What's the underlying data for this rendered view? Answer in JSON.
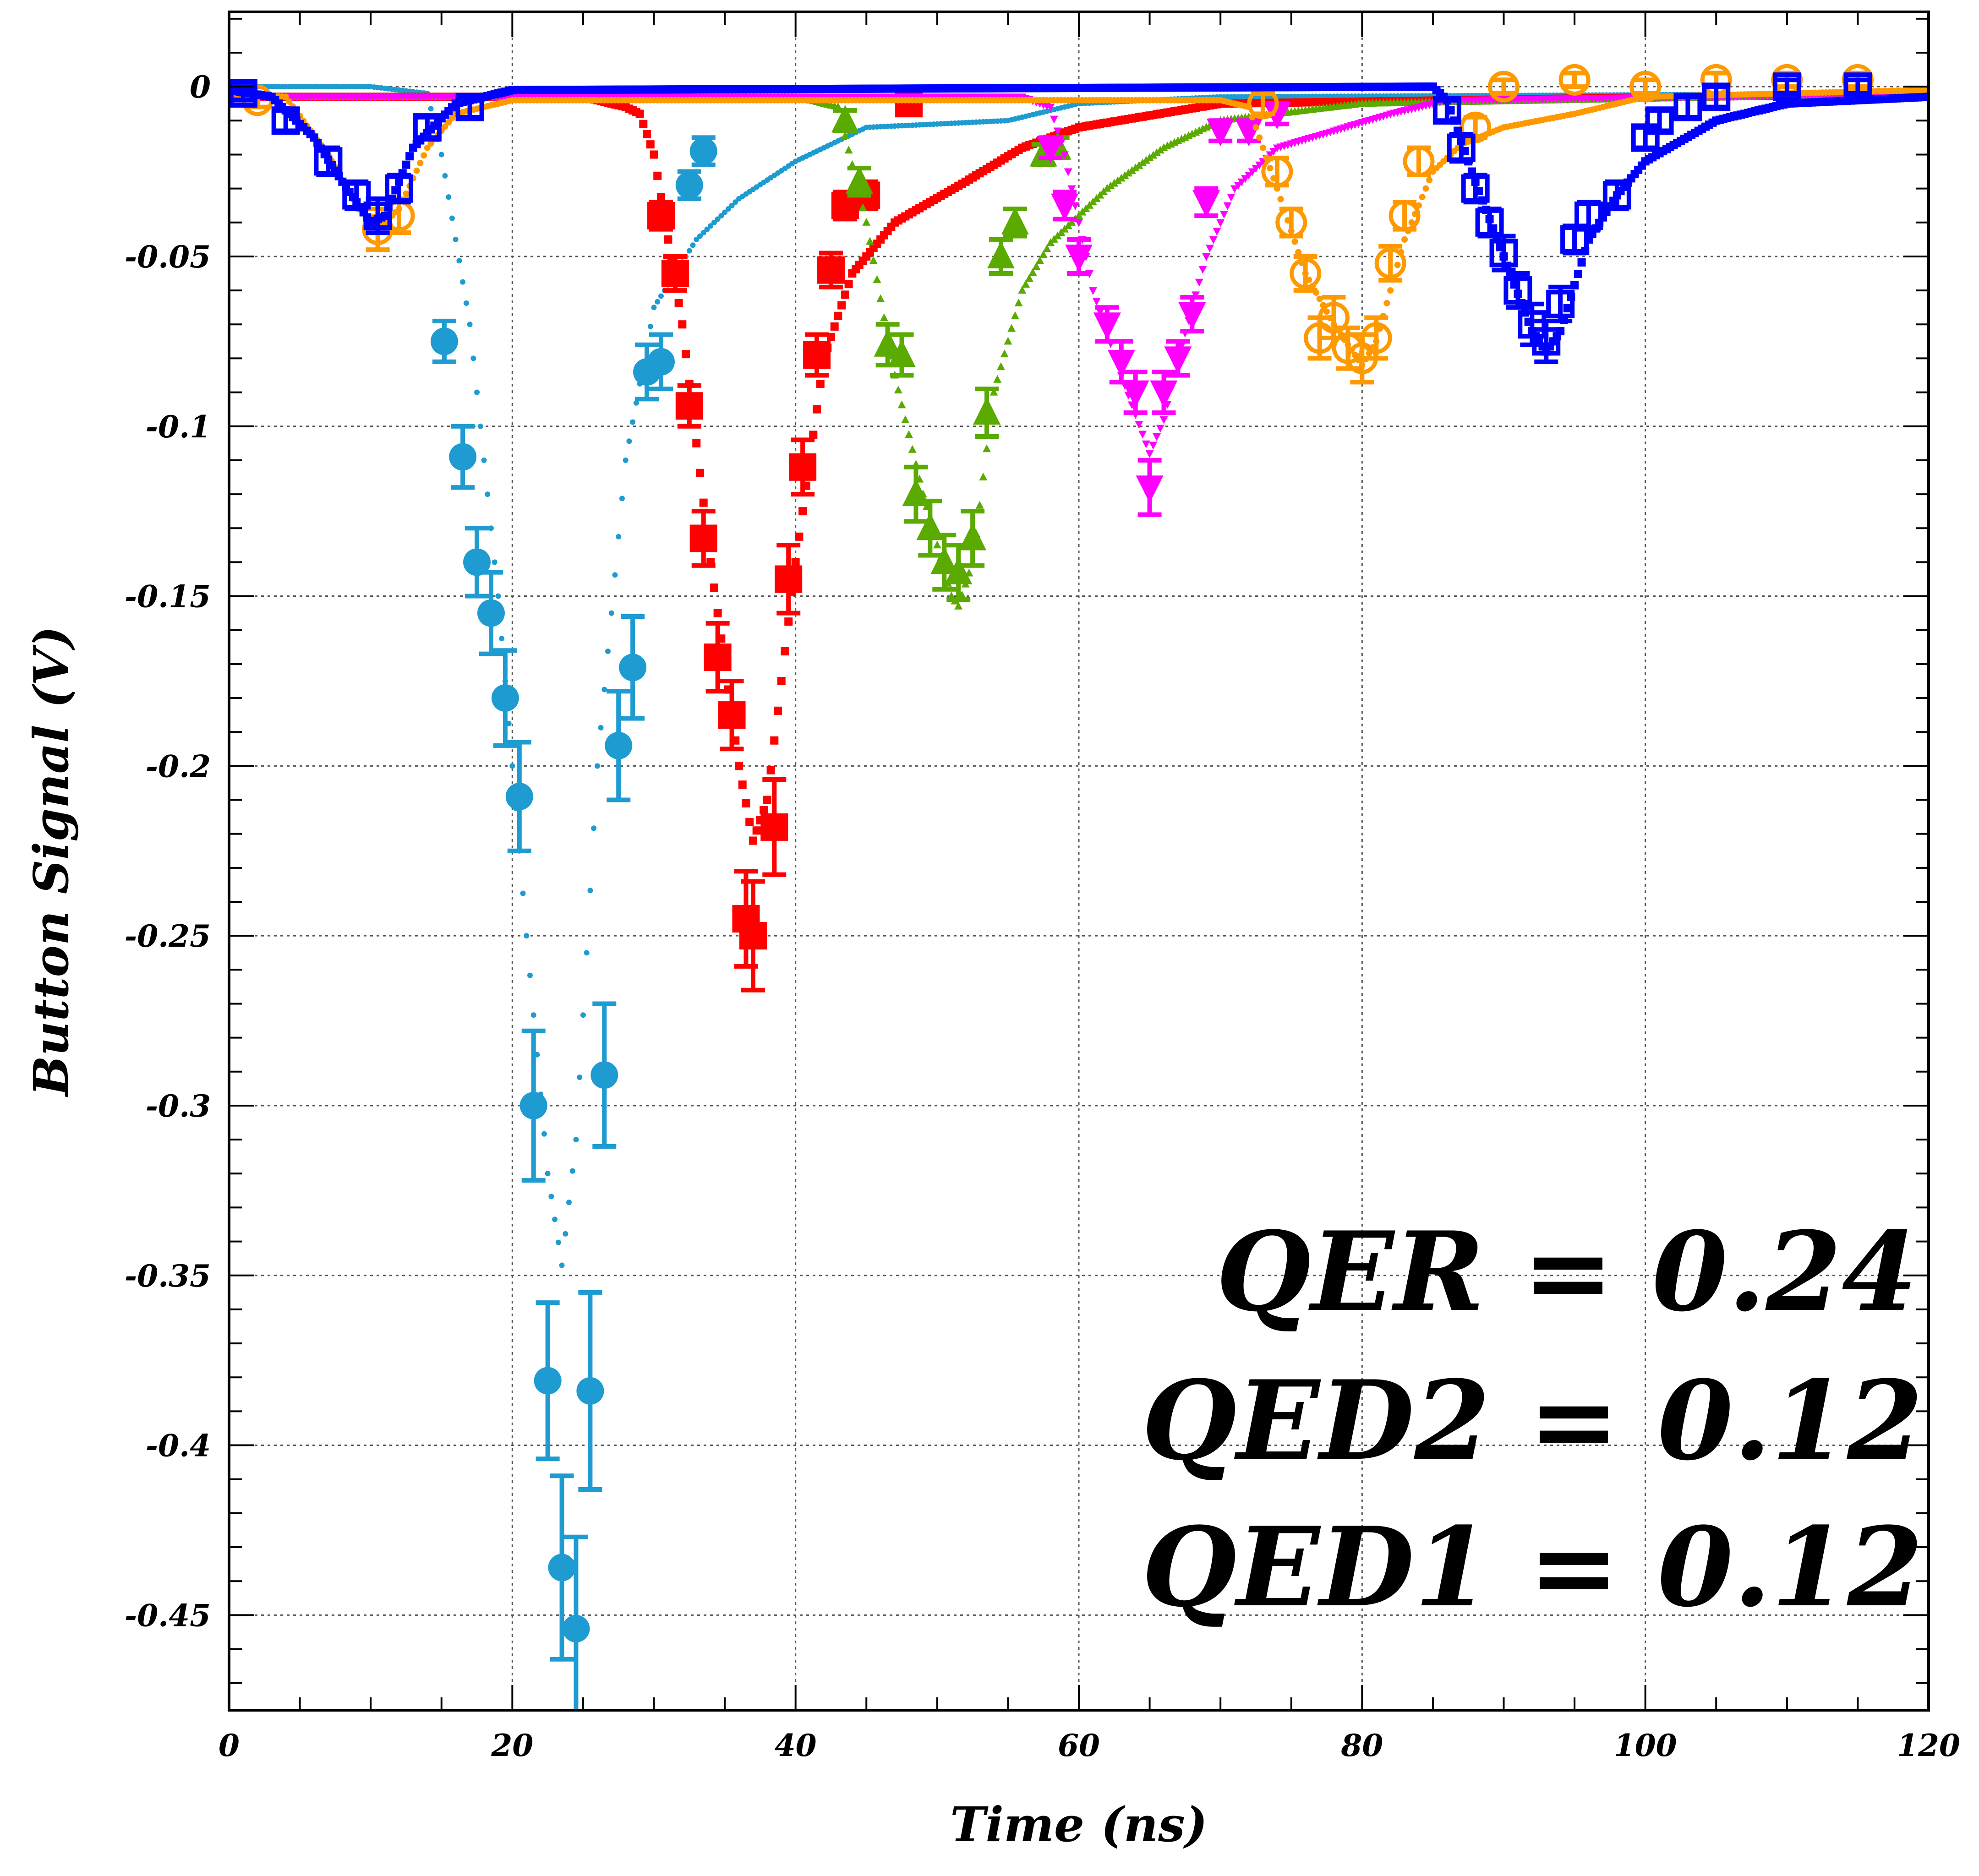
{
  "chart_data": {
    "type": "scatter",
    "title": "",
    "xlabel": "Time (ns)",
    "ylabel": "Button Signal (V)",
    "xlim": [
      0,
      120
    ],
    "ylim": [
      -0.478,
      0.022
    ],
    "x_ticks": [
      0,
      20,
      40,
      60,
      80,
      100,
      120
    ],
    "x_tick_labels": [
      "0",
      "20",
      "40",
      "60",
      "80",
      "100",
      "120"
    ],
    "y_ticks": [
      0,
      -0.05,
      -0.1,
      -0.15,
      -0.2,
      -0.25,
      -0.3,
      -0.35,
      -0.4,
      -0.45
    ],
    "y_tick_labels": [
      "0",
      "-0.05",
      "-0.1",
      "-0.15",
      "-0.2",
      "-0.25",
      "-0.3",
      "-0.35",
      "-0.4",
      "-0.45"
    ],
    "grid": true,
    "annotations": [
      "QER = 0.24",
      "QED2 = 0.12",
      "QED1 = 0.12"
    ],
    "series": [
      {
        "color": "#1e9bd0",
        "marker": "circle",
        "filled": true,
        "points": [
          [
            15.2,
            -0.075,
            0.006
          ],
          [
            16.5,
            -0.109,
            0.009
          ],
          [
            17.5,
            -0.14,
            0.01
          ],
          [
            18.5,
            -0.155,
            0.012
          ],
          [
            19.5,
            -0.18,
            0.014
          ],
          [
            20.5,
            -0.209,
            0.016
          ],
          [
            21.5,
            -0.3,
            0.022
          ],
          [
            22.5,
            -0.381,
            0.023
          ],
          [
            23.5,
            -0.436,
            0.027
          ],
          [
            24.5,
            -0.454,
            0.027
          ],
          [
            25.5,
            -0.384,
            0.029
          ],
          [
            26.5,
            -0.291,
            0.021
          ],
          [
            27.5,
            -0.194,
            0.016
          ],
          [
            28.5,
            -0.171,
            0.015
          ],
          [
            29.5,
            -0.084,
            0.008
          ],
          [
            30.5,
            -0.081,
            0.008
          ],
          [
            32.5,
            -0.029,
            0.004
          ],
          [
            33.5,
            -0.019,
            0.004
          ]
        ],
        "curve": [
          [
            0,
            0
          ],
          [
            10,
            0
          ],
          [
            14,
            -0.002
          ],
          [
            15,
            -0.02
          ],
          [
            17,
            -0.07
          ],
          [
            19,
            -0.15
          ],
          [
            21,
            -0.25
          ],
          [
            22.5,
            -0.32
          ],
          [
            23.5,
            -0.347
          ],
          [
            24.5,
            -0.31
          ],
          [
            26,
            -0.2
          ],
          [
            28,
            -0.11
          ],
          [
            30,
            -0.065
          ],
          [
            33,
            -0.045
          ],
          [
            36,
            -0.033
          ],
          [
            40,
            -0.022
          ],
          [
            45,
            -0.012
          ],
          [
            50,
            -0.011
          ],
          [
            55,
            -0.01
          ],
          [
            60,
            -0.005
          ],
          [
            70,
            -0.003
          ],
          [
            120,
            -0.002
          ]
        ]
      },
      {
        "color": "#ff0000",
        "marker": "square",
        "filled": true,
        "points": [
          [
            30.5,
            -0.038,
            0.004
          ],
          [
            31.5,
            -0.055,
            0.005
          ],
          [
            32.5,
            -0.094,
            0.006
          ],
          [
            33.5,
            -0.133,
            0.008
          ],
          [
            34.5,
            -0.168,
            0.01
          ],
          [
            35.5,
            -0.185,
            0.01
          ],
          [
            36.5,
            -0.245,
            0.014
          ],
          [
            37,
            -0.25,
            0.016
          ],
          [
            38.5,
            -0.218,
            0.014
          ],
          [
            39.5,
            -0.145,
            0.01
          ],
          [
            40.5,
            -0.112,
            0.008
          ],
          [
            41.5,
            -0.079,
            0.006
          ],
          [
            42.5,
            -0.054,
            0.005
          ],
          [
            43.5,
            -0.035,
            0.004
          ],
          [
            45,
            -0.032,
            0.004
          ],
          [
            48,
            -0.005,
            0.003
          ]
        ],
        "curve": [
          [
            0,
            -0.003
          ],
          [
            25,
            -0.003
          ],
          [
            28,
            -0.006
          ],
          [
            29,
            -0.008
          ],
          [
            30,
            -0.02
          ],
          [
            32,
            -0.07
          ],
          [
            34,
            -0.14
          ],
          [
            36,
            -0.2
          ],
          [
            37,
            -0.222
          ],
          [
            38,
            -0.21
          ],
          [
            40,
            -0.14
          ],
          [
            42,
            -0.08
          ],
          [
            44,
            -0.055
          ],
          [
            47,
            -0.04
          ],
          [
            52,
            -0.028
          ],
          [
            56,
            -0.018
          ],
          [
            60,
            -0.012
          ],
          [
            70,
            -0.005
          ],
          [
            120,
            -0.002
          ]
        ]
      },
      {
        "color": "#5aaa00",
        "marker": "triangle-up",
        "filled": true,
        "points": [
          [
            43.5,
            -0.01,
            0.003
          ],
          [
            44.5,
            -0.028,
            0.004
          ],
          [
            46.5,
            -0.076,
            0.006
          ],
          [
            47.5,
            -0.079,
            0.006
          ],
          [
            48.5,
            -0.12,
            0.008
          ],
          [
            49.5,
            -0.13,
            0.008
          ],
          [
            50.5,
            -0.14,
            0.008
          ],
          [
            51.5,
            -0.143,
            0.008
          ],
          [
            52.5,
            -0.133,
            0.008
          ],
          [
            53.5,
            -0.096,
            0.007
          ],
          [
            54.5,
            -0.05,
            0.005
          ],
          [
            55.5,
            -0.04,
            0.004
          ],
          [
            57.5,
            -0.02,
            0.003
          ],
          [
            58.5,
            -0.018,
            0.003
          ]
        ],
        "curve": [
          [
            0,
            -0.003
          ],
          [
            40,
            -0.003
          ],
          [
            43,
            -0.006
          ],
          [
            45,
            -0.04
          ],
          [
            47,
            -0.085
          ],
          [
            49,
            -0.12
          ],
          [
            51,
            -0.15
          ],
          [
            51.5,
            -0.153
          ],
          [
            52.5,
            -0.14
          ],
          [
            54,
            -0.09
          ],
          [
            56,
            -0.06
          ],
          [
            58,
            -0.046
          ],
          [
            62,
            -0.03
          ],
          [
            66,
            -0.018
          ],
          [
            70,
            -0.01
          ],
          [
            80,
            -0.005
          ],
          [
            120,
            -0.002
          ]
        ]
      },
      {
        "color": "#ff00ff",
        "marker": "triangle-down",
        "filled": true,
        "points": [
          [
            58,
            -0.018,
            0.003
          ],
          [
            59,
            -0.035,
            0.004
          ],
          [
            60,
            -0.05,
            0.005
          ],
          [
            62,
            -0.07,
            0.005
          ],
          [
            63,
            -0.081,
            0.006
          ],
          [
            64,
            -0.09,
            0.006
          ],
          [
            65,
            -0.118,
            0.008
          ],
          [
            66,
            -0.09,
            0.006
          ],
          [
            67,
            -0.08,
            0.005
          ],
          [
            68,
            -0.067,
            0.005
          ],
          [
            69,
            -0.034,
            0.004
          ],
          [
            70,
            -0.013,
            0.003
          ],
          [
            72,
            -0.013,
            0.003
          ],
          [
            74,
            -0.008,
            0.003
          ]
        ],
        "curve": [
          [
            0,
            -0.003
          ],
          [
            56,
            -0.003
          ],
          [
            58,
            -0.006
          ],
          [
            59,
            -0.02
          ],
          [
            61,
            -0.06
          ],
          [
            63,
            -0.085
          ],
          [
            65,
            -0.108
          ],
          [
            66,
            -0.098
          ],
          [
            67,
            -0.08
          ],
          [
            69,
            -0.05
          ],
          [
            71,
            -0.03
          ],
          [
            74,
            -0.018
          ],
          [
            78,
            -0.013
          ],
          [
            82,
            -0.008
          ],
          [
            86,
            -0.004
          ],
          [
            120,
            -0.002
          ]
        ]
      },
      {
        "color": "#ff9900",
        "marker": "circle",
        "filled": false,
        "points": [
          [
            2,
            -0.004,
            0.002
          ],
          [
            10.5,
            -0.042,
            0.006
          ],
          [
            12,
            -0.038,
            0.005
          ],
          [
            73,
            -0.005,
            0.003
          ],
          [
            74,
            -0.025,
            0.004
          ],
          [
            75,
            -0.04,
            0.004
          ],
          [
            76,
            -0.055,
            0.005
          ],
          [
            77,
            -0.074,
            0.006
          ],
          [
            78,
            -0.068,
            0.006
          ],
          [
            79,
            -0.077,
            0.006
          ],
          [
            80,
            -0.08,
            0.007
          ],
          [
            81,
            -0.074,
            0.006
          ],
          [
            82,
            -0.052,
            0.005
          ],
          [
            83,
            -0.038,
            0.004
          ],
          [
            84,
            -0.022,
            0.004
          ],
          [
            88,
            -0.012,
            0.003
          ],
          [
            90,
            0,
            0.002
          ],
          [
            95,
            0.002,
            0.002
          ],
          [
            100,
            0,
            0.002
          ],
          [
            105,
            0.002,
            0.002
          ],
          [
            110,
            0.002,
            0.002
          ],
          [
            115,
            0.002,
            0.002
          ]
        ],
        "curve": [
          [
            0,
            -0.002
          ],
          [
            4,
            -0.003
          ],
          [
            7,
            -0.02
          ],
          [
            9,
            -0.035
          ],
          [
            10.5,
            -0.042
          ],
          [
            12,
            -0.036
          ],
          [
            14,
            -0.018
          ],
          [
            16,
            -0.008
          ],
          [
            20,
            -0.004
          ],
          [
            70,
            -0.004
          ],
          [
            72,
            -0.006
          ],
          [
            74,
            -0.03
          ],
          [
            76,
            -0.055
          ],
          [
            78,
            -0.07
          ],
          [
            80,
            -0.082
          ],
          [
            81,
            -0.075
          ],
          [
            83,
            -0.045
          ],
          [
            85,
            -0.025
          ],
          [
            87,
            -0.017
          ],
          [
            90,
            -0.012
          ],
          [
            95,
            -0.008
          ],
          [
            100,
            -0.003
          ],
          [
            120,
            -0.001
          ]
        ]
      },
      {
        "color": "#0000ff",
        "marker": "square",
        "filled": false,
        "points": [
          [
            1,
            -0.002,
            0.002
          ],
          [
            4,
            -0.01,
            0.003
          ],
          [
            7,
            -0.022,
            0.004
          ],
          [
            9,
            -0.032,
            0.004
          ],
          [
            10.5,
            -0.038,
            0.005
          ],
          [
            12,
            -0.03,
            0.004
          ],
          [
            14,
            -0.012,
            0.003
          ],
          [
            17,
            -0.006,
            0.003
          ],
          [
            86,
            -0.007,
            0.003
          ],
          [
            87,
            -0.018,
            0.004
          ],
          [
            88,
            -0.03,
            0.004
          ],
          [
            89,
            -0.04,
            0.004
          ],
          [
            90,
            -0.049,
            0.005
          ],
          [
            91,
            -0.06,
            0.005
          ],
          [
            92,
            -0.07,
            0.006
          ],
          [
            93,
            -0.075,
            0.006
          ],
          [
            94,
            -0.064,
            0.005
          ],
          [
            95,
            -0.045,
            0.004
          ],
          [
            96,
            -0.038,
            0.004
          ],
          [
            98,
            -0.032,
            0.004
          ],
          [
            100,
            -0.015,
            0.003
          ],
          [
            101,
            -0.01,
            0.003
          ],
          [
            103,
            -0.006,
            0.003
          ],
          [
            105,
            -0.003,
            0.003
          ],
          [
            110,
            0,
            0.002
          ],
          [
            115,
            0,
            0.002
          ]
        ],
        "curve": [
          [
            0,
            -0.001
          ],
          [
            3,
            -0.003
          ],
          [
            6,
            -0.015
          ],
          [
            8,
            -0.028
          ],
          [
            10,
            -0.04
          ],
          [
            11,
            -0.038
          ],
          [
            13,
            -0.018
          ],
          [
            16,
            -0.005
          ],
          [
            20,
            -0.001
          ],
          [
            85,
            0
          ],
          [
            86,
            -0.004
          ],
          [
            88,
            -0.028
          ],
          [
            90,
            -0.05
          ],
          [
            92,
            -0.072
          ],
          [
            93,
            -0.078
          ],
          [
            94,
            -0.072
          ],
          [
            96,
            -0.045
          ],
          [
            98,
            -0.032
          ],
          [
            100,
            -0.022
          ],
          [
            105,
            -0.01
          ],
          [
            110,
            -0.005
          ],
          [
            120,
            -0.003
          ]
        ]
      }
    ]
  }
}
